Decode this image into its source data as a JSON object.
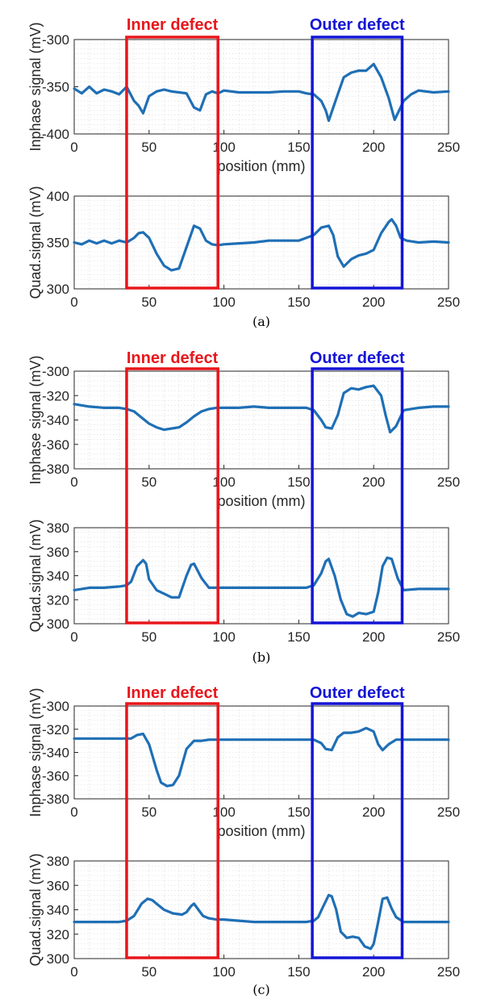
{
  "colors": {
    "line": "#1f6fb5",
    "inner_box": "#e8161b",
    "outer_box": "#1414d6",
    "axis": "#262626",
    "grid": "#d9d9d9"
  },
  "annotations": {
    "inner_label": "Inner defect",
    "outer_label": "Outer defect",
    "inner_range": [
      35,
      96
    ],
    "outer_range": [
      159,
      219
    ]
  },
  "panels": [
    {
      "caption": "(a)",
      "inphase": {
        "ylabel": "Inphase signal (mV)",
        "xlabel": "position (mm)",
        "yticks": [
          "-300",
          "-350",
          "-400"
        ],
        "xticks": [
          "0",
          "50",
          "100",
          "150",
          "200",
          "250"
        ]
      },
      "quad": {
        "ylabel": "Quad.signal (mV)",
        "yticks": [
          "400",
          "350",
          "300"
        ],
        "xticks": [
          "0",
          "50",
          "100",
          "150",
          "200",
          "250"
        ]
      }
    },
    {
      "caption": "(b)",
      "inphase": {
        "ylabel": "Inphase signal (mV)",
        "xlabel": "position (mm)",
        "yticks": [
          "-300",
          "-320",
          "-340",
          "-360",
          "-380"
        ],
        "xticks": [
          "0",
          "50",
          "100",
          "150",
          "200",
          "250"
        ]
      },
      "quad": {
        "ylabel": "Quad.signal (mV)",
        "yticks": [
          "380",
          "360",
          "340",
          "320",
          "300"
        ],
        "xticks": [
          "0",
          "50",
          "100",
          "150",
          "200",
          "250"
        ]
      }
    },
    {
      "caption": "(c)",
      "inphase": {
        "ylabel": "Inphase signal (mV)",
        "xlabel": "position (mm)",
        "yticks": [
          "-300",
          "-320",
          "-340",
          "-360",
          "-380"
        ],
        "xticks": [
          "0",
          "50",
          "100",
          "150",
          "200",
          "250"
        ]
      },
      "quad": {
        "ylabel": "Quad.signal (mV)",
        "yticks": [
          "380",
          "360",
          "340",
          "320",
          "300"
        ],
        "xticks": [
          "0",
          "50",
          "100",
          "150",
          "200",
          "250"
        ]
      }
    }
  ],
  "chart_data": [
    {
      "type": "line",
      "panel": "(a)",
      "ylabel": "Inphase signal (mV)",
      "xlabel": "position (mm)",
      "xlim": [
        0,
        250
      ],
      "ylim": [
        -400,
        -300
      ],
      "grid": true,
      "x": [
        0,
        5,
        10,
        15,
        20,
        25,
        30,
        35,
        40,
        43,
        46,
        50,
        55,
        60,
        65,
        70,
        75,
        80,
        84,
        88,
        92,
        96,
        100,
        110,
        120,
        130,
        140,
        150,
        155,
        160,
        165,
        168,
        170,
        173,
        176,
        180,
        185,
        190,
        195,
        200,
        205,
        210,
        214,
        217,
        220,
        225,
        230,
        240,
        250
      ],
      "values": [
        -352,
        -357,
        -350,
        -357,
        -353,
        -355,
        -358,
        -350,
        -365,
        -370,
        -378,
        -360,
        -355,
        -353,
        -355,
        -356,
        -357,
        -372,
        -375,
        -358,
        -355,
        -357,
        -354,
        -356,
        -356,
        -356,
        -355,
        -355,
        -357,
        -358,
        -365,
        -375,
        -386,
        -372,
        -358,
        -340,
        -335,
        -333,
        -333,
        -326,
        -340,
        -362,
        -385,
        -375,
        -365,
        -358,
        -354,
        -356,
        -355
      ]
    },
    {
      "type": "line",
      "panel": "(a)",
      "ylabel": "Quad.signal (mV)",
      "xlim": [
        0,
        250
      ],
      "ylim": [
        300,
        400
      ],
      "grid": true,
      "x": [
        0,
        5,
        10,
        15,
        20,
        25,
        30,
        35,
        40,
        43,
        46,
        50,
        55,
        60,
        65,
        70,
        75,
        80,
        84,
        88,
        92,
        96,
        100,
        110,
        120,
        130,
        140,
        150,
        155,
        160,
        165,
        170,
        173,
        176,
        180,
        185,
        190,
        195,
        200,
        205,
        210,
        212,
        215,
        218,
        222,
        230,
        240,
        250
      ],
      "values": [
        350,
        348,
        352,
        349,
        352,
        349,
        352,
        350,
        355,
        360,
        361,
        355,
        338,
        325,
        320,
        322,
        345,
        368,
        365,
        352,
        348,
        347,
        348,
        349,
        350,
        352,
        352,
        352,
        355,
        358,
        366,
        368,
        358,
        335,
        324,
        332,
        336,
        338,
        342,
        360,
        372,
        375,
        368,
        355,
        352,
        350,
        351,
        350
      ]
    },
    {
      "type": "line",
      "panel": "(b)",
      "ylabel": "Inphase signal (mV)",
      "xlabel": "position (mm)",
      "xlim": [
        0,
        250
      ],
      "ylim": [
        -380,
        -300
      ],
      "grid": true,
      "x": [
        0,
        10,
        20,
        30,
        35,
        40,
        45,
        50,
        55,
        60,
        65,
        70,
        75,
        80,
        85,
        90,
        95,
        100,
        110,
        120,
        130,
        140,
        150,
        155,
        160,
        165,
        168,
        172,
        176,
        180,
        185,
        190,
        195,
        200,
        205,
        208,
        211,
        215,
        220,
        230,
        240,
        250
      ],
      "values": [
        -327,
        -329,
        -330,
        -330,
        -331,
        -333,
        -338,
        -343,
        -346,
        -348,
        -347,
        -346,
        -342,
        -337,
        -333,
        -331,
        -330,
        -330,
        -330,
        -329,
        -330,
        -330,
        -330,
        -330,
        -332,
        -340,
        -346,
        -347,
        -336,
        -318,
        -314,
        -315,
        -313,
        -312,
        -320,
        -336,
        -350,
        -345,
        -332,
        -330,
        -329,
        -329
      ]
    },
    {
      "type": "line",
      "panel": "(b)",
      "ylabel": "Quad.signal (mV)",
      "xlim": [
        0,
        250
      ],
      "ylim": [
        300,
        380
      ],
      "grid": true,
      "x": [
        0,
        10,
        20,
        30,
        35,
        38,
        42,
        46,
        48,
        50,
        55,
        60,
        65,
        70,
        75,
        78,
        80,
        85,
        90,
        95,
        100,
        110,
        120,
        130,
        140,
        150,
        155,
        160,
        165,
        168,
        170,
        174,
        178,
        182,
        186,
        190,
        195,
        200,
        203,
        206,
        209,
        212,
        216,
        220,
        230,
        240,
        250
      ],
      "values": [
        328,
        330,
        330,
        331,
        332,
        335,
        348,
        353,
        350,
        337,
        328,
        325,
        322,
        322,
        340,
        349,
        350,
        338,
        330,
        330,
        330,
        330,
        330,
        330,
        330,
        330,
        330,
        332,
        342,
        352,
        354,
        340,
        320,
        308,
        306,
        309,
        308,
        310,
        326,
        348,
        355,
        354,
        338,
        328,
        329,
        329,
        329
      ]
    },
    {
      "type": "line",
      "panel": "(c)",
      "ylabel": "Inphase signal (mV)",
      "xlabel": "position (mm)",
      "xlim": [
        0,
        250
      ],
      "ylim": [
        -380,
        -300
      ],
      "grid": true,
      "x": [
        0,
        10,
        20,
        30,
        38,
        42,
        46,
        50,
        55,
        58,
        62,
        66,
        70,
        75,
        80,
        85,
        90,
        95,
        100,
        110,
        120,
        130,
        140,
        150,
        155,
        160,
        165,
        168,
        172,
        176,
        180,
        185,
        190,
        195,
        200,
        203,
        206,
        210,
        215,
        220,
        230,
        240,
        250
      ],
      "values": [
        -328,
        -328,
        -328,
        -328,
        -328,
        -325,
        -324,
        -333,
        -355,
        -366,
        -369,
        -368,
        -360,
        -337,
        -330,
        -330,
        -329,
        -329,
        -329,
        -329,
        -329,
        -329,
        -329,
        -329,
        -329,
        -329,
        -332,
        -337,
        -338,
        -327,
        -323,
        -323,
        -322,
        -319,
        -322,
        -333,
        -338,
        -333,
        -329,
        -329,
        -329,
        -329,
        -329
      ]
    },
    {
      "type": "line",
      "panel": "(c)",
      "ylabel": "Quad.signal (mV)",
      "xlim": [
        0,
        250
      ],
      "ylim": [
        300,
        380
      ],
      "grid": true,
      "x": [
        0,
        10,
        20,
        30,
        35,
        40,
        45,
        49,
        52,
        56,
        60,
        66,
        72,
        75,
        78,
        80,
        83,
        86,
        90,
        95,
        100,
        110,
        120,
        130,
        140,
        150,
        155,
        160,
        163,
        166,
        170,
        172,
        175,
        178,
        182,
        186,
        190,
        194,
        198,
        200,
        203,
        206,
        209,
        212,
        215,
        220,
        230,
        240,
        250
      ],
      "values": [
        330,
        330,
        330,
        330,
        331,
        335,
        345,
        349,
        348,
        344,
        340,
        337,
        336,
        338,
        343,
        345,
        340,
        335,
        333,
        332,
        332,
        331,
        330,
        330,
        330,
        330,
        330,
        331,
        334,
        342,
        352,
        351,
        340,
        322,
        317,
        318,
        317,
        310,
        308,
        312,
        330,
        349,
        350,
        341,
        334,
        330,
        330,
        330,
        330
      ]
    }
  ]
}
